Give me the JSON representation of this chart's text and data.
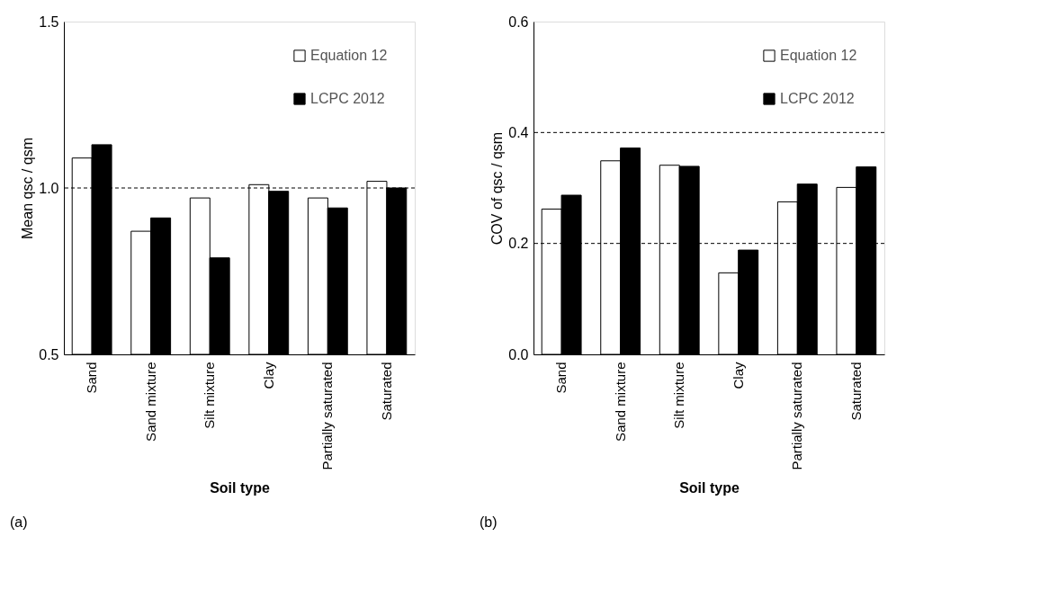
{
  "chart_data": [
    {
      "type": "bar",
      "xlabel": "Soil type",
      "ylabel": "Mean qsc / qsm",
      "categories": [
        "Sand",
        "Sand mixture",
        "Silt mixture",
        "Clay",
        "Partially saturated",
        "Saturated"
      ],
      "series": [
        {
          "name": "Equation 12",
          "color": "#ffffff",
          "values": [
            1.09,
            0.87,
            0.97,
            1.01,
            0.97,
            1.02
          ]
        },
        {
          "name": "LCPC 2012",
          "color": "#000000",
          "values": [
            1.13,
            0.91,
            0.79,
            0.99,
            0.94,
            1.0
          ]
        }
      ],
      "ylim": [
        0.5,
        1.5
      ],
      "yticks": [
        0.5,
        {
          "value": 1,
          "label": "1.0"
        },
        1.5
      ],
      "legend": "top right",
      "ref_lines": [
        {
          "axis": "y",
          "value": 1.0,
          "line_style": "dashed"
        }
      ],
      "annotations": [
        "(a)"
      ]
    },
    {
      "type": "bar",
      "xlabel": "Soil type",
      "ylabel": "COV of qsc / qsm",
      "categories": [
        "Sand",
        "Sand mixture",
        "Silt mixture",
        "Clay",
        "Partially saturated",
        "Saturated"
      ],
      "series": [
        {
          "name": "Equation 12",
          "color": "#ffffff",
          "values": [
            0.262,
            0.349,
            0.341,
            0.147,
            0.275,
            0.301
          ]
        },
        {
          "name": "LCPC 2012",
          "color": "#000000",
          "values": [
            0.287,
            0.372,
            0.339,
            0.188,
            0.307,
            0.338
          ]
        }
      ],
      "ylim": [
        0.0,
        0.6
      ],
      "yticks": [
        {
          "value": 0,
          "label": "0.0"
        },
        0.2,
        0.4,
        0.6
      ],
      "legend": "top right",
      "ref_lines": [
        {
          "axis": "y",
          "value": 0.2,
          "line_style": "dashed"
        },
        {
          "axis": "y",
          "value": 0.4,
          "line_style": "dashed"
        }
      ],
      "annotations": [
        "(b)"
      ]
    }
  ]
}
